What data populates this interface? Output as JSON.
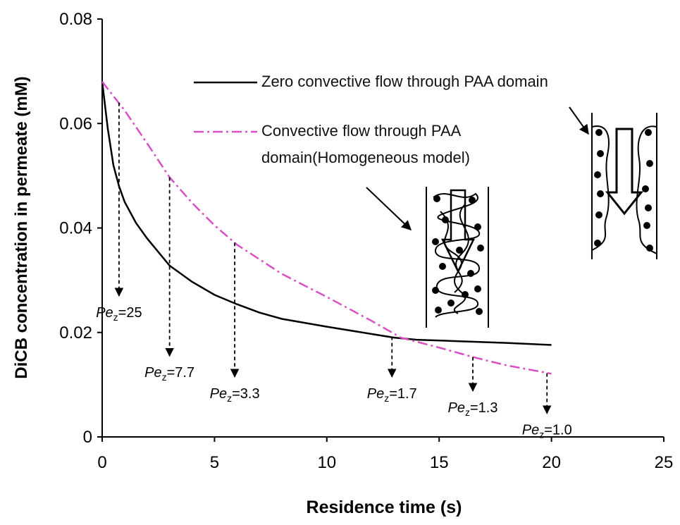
{
  "chart_data": {
    "type": "line",
    "x_label": "Residence time (s)",
    "y_label": "DiCB concentration in permeate (mM)",
    "xlim": [
      0,
      25
    ],
    "xticks": [
      0,
      5,
      10,
      15,
      20,
      25
    ],
    "ylim": [
      0,
      0.08
    ],
    "yticks": [
      0,
      0.02,
      0.04,
      0.06,
      0.08
    ],
    "series": [
      {
        "name": "Zero convective flow through PAA domain",
        "color": "#000000",
        "dash": "solid",
        "x": [
          0,
          0.25,
          0.5,
          0.75,
          1,
          1.5,
          2,
          3,
          4,
          5,
          6,
          7,
          8,
          10,
          12,
          13,
          14,
          16,
          18,
          20
        ],
        "values": [
          0.068,
          0.059,
          0.052,
          0.048,
          0.045,
          0.041,
          0.038,
          0.0328,
          0.0297,
          0.0272,
          0.0254,
          0.0238,
          0.0226,
          0.0211,
          0.0197,
          0.019,
          0.0186,
          0.0183,
          0.018,
          0.0176
        ]
      },
      {
        "name": "Convective flow through PAA domain(Homogeneous model)",
        "color": "#d94fc4",
        "dash": "dashdot",
        "x": [
          0,
          1,
          2,
          3,
          4,
          5,
          6,
          8,
          10,
          12,
          13.3,
          15,
          16.5,
          18,
          20
        ],
        "values": [
          0.068,
          0.0625,
          0.0562,
          0.0497,
          0.0448,
          0.0405,
          0.0368,
          0.0312,
          0.0268,
          0.0222,
          0.019,
          0.0171,
          0.0153,
          0.0137,
          0.0121
        ]
      }
    ],
    "annotations": [
      {
        "symbol": "Pe",
        "subscript": "z",
        "text": "=25",
        "x": 0.75,
        "y_start": 0.064,
        "y_end": 0.027
      },
      {
        "symbol": "Pe",
        "subscript": "z",
        "text": "=7.7",
        "x": 3.0,
        "y_start": 0.0497,
        "y_end": 0.0155
      },
      {
        "symbol": "Pe",
        "subscript": "z",
        "text": "=3.3",
        "x": 5.9,
        "y_start": 0.0372,
        "y_end": 0.0115
      },
      {
        "symbol": "Pe",
        "subscript": "z",
        "text": "=1.7",
        "x": 12.9,
        "y_start": 0.0192,
        "y_end": 0.0115
      },
      {
        "symbol": "Pe",
        "subscript": "z",
        "text": "=1.3",
        "x": 16.5,
        "y_start": 0.0153,
        "y_end": 0.0088
      },
      {
        "symbol": "Pe",
        "subscript": "z",
        "text": "=1.0",
        "x": 19.8,
        "y_start": 0.0122,
        "y_end": 0.0045
      }
    ]
  }
}
